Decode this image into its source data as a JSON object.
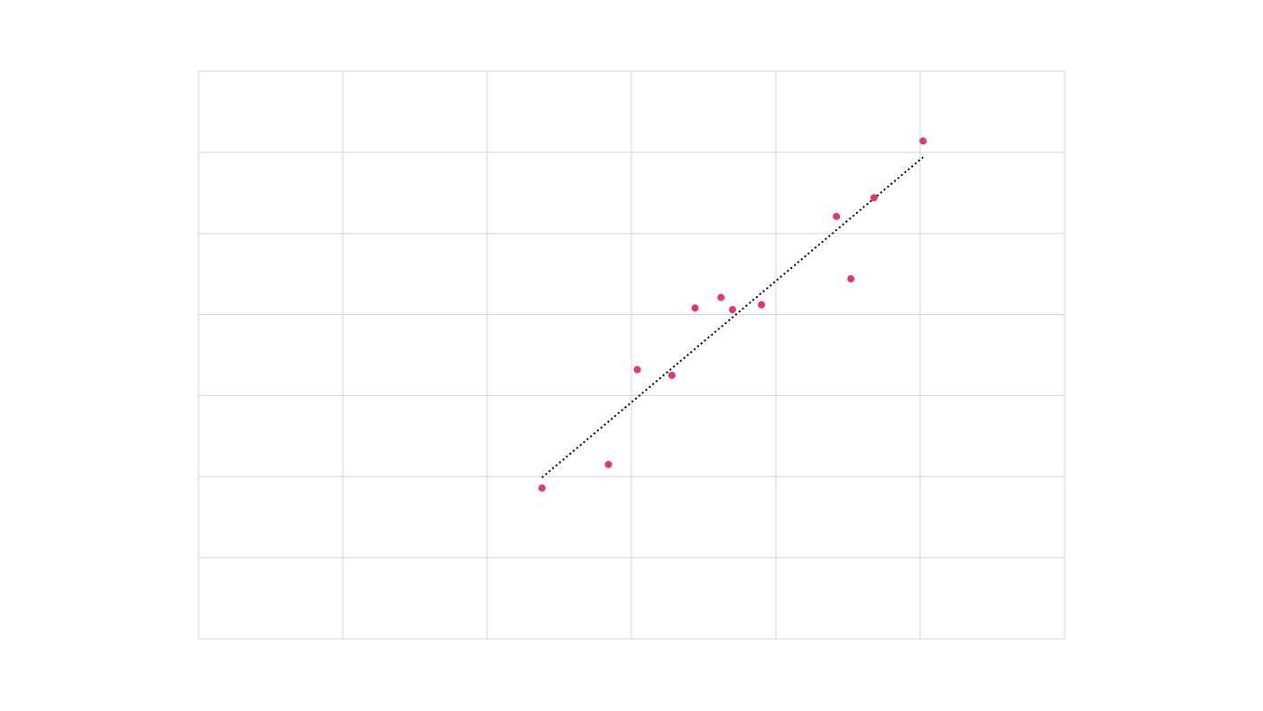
{
  "colors": {
    "point": "#e8336b",
    "trendline": "#000000",
    "grid": "#d4d4d4",
    "background": "#ffffff"
  },
  "chart_data": {
    "type": "scatter",
    "title": "",
    "xlabel": "",
    "ylabel": "",
    "xlim": [
      0,
      6
    ],
    "ylim": [
      0,
      7
    ],
    "grid": true,
    "x_gridlines": [
      0,
      1,
      2,
      3,
      4,
      5,
      6
    ],
    "y_gridlines": [
      0,
      1,
      2,
      3,
      4,
      5,
      6,
      7
    ],
    "tick_labels_visible": false,
    "legend": "none",
    "series": [
      {
        "points": [
          {
            "x": 2.38,
            "y": 1.86
          },
          {
            "x": 2.84,
            "y": 2.15
          },
          {
            "x": 3.04,
            "y": 3.32
          },
          {
            "x": 3.28,
            "y": 3.25
          },
          {
            "x": 3.44,
            "y": 4.08
          },
          {
            "x": 3.62,
            "y": 4.21
          },
          {
            "x": 3.7,
            "y": 4.06
          },
          {
            "x": 3.9,
            "y": 4.12
          },
          {
            "x": 4.42,
            "y": 5.21
          },
          {
            "x": 4.52,
            "y": 4.44
          },
          {
            "x": 4.68,
            "y": 5.44
          },
          {
            "x": 5.02,
            "y": 6.14
          }
        ]
      }
    ],
    "trendline": {
      "style": "dotted",
      "x_start": 2.38,
      "x_end": 5.02,
      "y_start": 1.99,
      "y_end": 5.94
    }
  }
}
